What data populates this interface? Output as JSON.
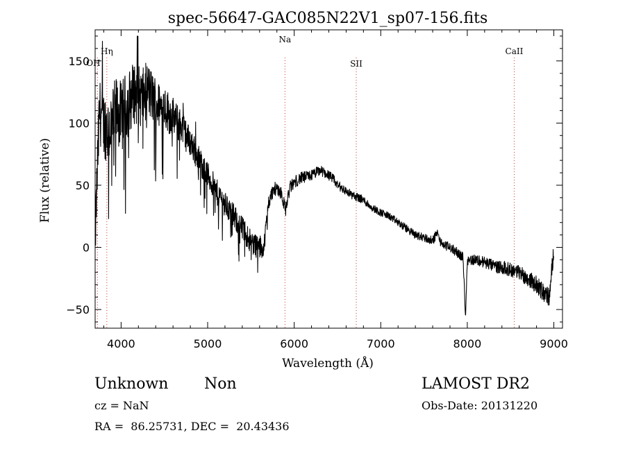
{
  "chart_data": {
    "type": "line",
    "title": "spec-56647-GAC085N22V1_sp07-156.fits",
    "xlabel": "Wavelength (Å)",
    "ylabel": "Flux (relative)",
    "xlim": [
      3700,
      9100
    ],
    "ylim": [
      -65,
      175
    ],
    "xticks": [
      4000,
      5000,
      6000,
      7000,
      8000,
      9000
    ],
    "yticks": [
      -50,
      0,
      50,
      100,
      150
    ],
    "tick_labels_x": [
      "4000",
      "5000",
      "6000",
      "7000",
      "8000",
      "9000"
    ],
    "tick_labels_y": [
      "−50",
      "0",
      "50",
      "100",
      "150"
    ],
    "line_color": "#000000",
    "marker_color": "#cc3333",
    "line_markers": [
      {
        "label": "OH",
        "wavelength": 3727
      },
      {
        "label": "Hη",
        "wavelength": 3835
      },
      {
        "label": "Na",
        "wavelength": 5893
      },
      {
        "label": "SII",
        "wavelength": 6717
      },
      {
        "label": "CaII",
        "wavelength": 8542
      }
    ],
    "anchors": [
      [
        3700,
        5
      ],
      [
        3725,
        60
      ],
      [
        3750,
        110
      ],
      [
        3800,
        100
      ],
      [
        3850,
        95
      ],
      [
        3900,
        100
      ],
      [
        3950,
        110
      ],
      [
        4000,
        105
      ],
      [
        4050,
        112
      ],
      [
        4100,
        118
      ],
      [
        4150,
        125
      ],
      [
        4200,
        122
      ],
      [
        4250,
        120
      ],
      [
        4300,
        128
      ],
      [
        4350,
        122
      ],
      [
        4400,
        118
      ],
      [
        4450,
        112
      ],
      [
        4500,
        115
      ],
      [
        4550,
        108
      ],
      [
        4600,
        105
      ],
      [
        4650,
        100
      ],
      [
        4700,
        98
      ],
      [
        4750,
        90
      ],
      [
        4800,
        85
      ],
      [
        4850,
        78
      ],
      [
        4900,
        70
      ],
      [
        4950,
        65
      ],
      [
        5000,
        58
      ],
      [
        5050,
        52
      ],
      [
        5100,
        45
      ],
      [
        5150,
        40
      ],
      [
        5200,
        35
      ],
      [
        5250,
        30
      ],
      [
        5300,
        25
      ],
      [
        5350,
        20
      ],
      [
        5400,
        15
      ],
      [
        5450,
        10
      ],
      [
        5500,
        5
      ],
      [
        5550,
        2
      ],
      [
        5600,
        0
      ],
      [
        5650,
        0
      ],
      [
        5700,
        35
      ],
      [
        5750,
        45
      ],
      [
        5800,
        48
      ],
      [
        5850,
        44
      ],
      [
        5900,
        30
      ],
      [
        5950,
        48
      ],
      [
        6000,
        52
      ],
      [
        6050,
        55
      ],
      [
        6100,
        56
      ],
      [
        6150,
        57
      ],
      [
        6200,
        58
      ],
      [
        6250,
        60
      ],
      [
        6300,
        62
      ],
      [
        6350,
        60
      ],
      [
        6400,
        58
      ],
      [
        6450,
        55
      ],
      [
        6500,
        50
      ],
      [
        6550,
        48
      ],
      [
        6600,
        45
      ],
      [
        6650,
        43
      ],
      [
        6700,
        41
      ],
      [
        6750,
        40
      ],
      [
        6800,
        38
      ],
      [
        6850,
        35
      ],
      [
        6900,
        32
      ],
      [
        6950,
        30
      ],
      [
        7000,
        28
      ],
      [
        7100,
        25
      ],
      [
        7200,
        20
      ],
      [
        7300,
        15
      ],
      [
        7400,
        10
      ],
      [
        7500,
        8
      ],
      [
        7600,
        5
      ],
      [
        7650,
        12
      ],
      [
        7700,
        3
      ],
      [
        7800,
        0
      ],
      [
        7900,
        -5
      ],
      [
        7950,
        -8
      ],
      [
        7980,
        -55
      ],
      [
        8000,
        -10
      ],
      [
        8100,
        -10
      ],
      [
        8200,
        -12
      ],
      [
        8300,
        -15
      ],
      [
        8400,
        -16
      ],
      [
        8500,
        -18
      ],
      [
        8600,
        -20
      ],
      [
        8700,
        -25
      ],
      [
        8800,
        -30
      ],
      [
        8900,
        -38
      ],
      [
        8950,
        -40
      ],
      [
        9000,
        0
      ]
    ],
    "noise_bands": [
      [
        3700,
        25
      ],
      [
        3900,
        30
      ],
      [
        4200,
        25
      ],
      [
        4500,
        18
      ],
      [
        4800,
        12
      ],
      [
        5200,
        10
      ],
      [
        5600,
        10
      ],
      [
        5700,
        6
      ],
      [
        6400,
        4
      ],
      [
        7000,
        3
      ],
      [
        8000,
        4
      ],
      [
        8600,
        6
      ],
      [
        9000,
        8
      ]
    ]
  },
  "footer": {
    "object_class": "Unknown",
    "object_subclass": "Non",
    "survey": "LAMOST DR2",
    "redshift": "cz = NaN",
    "obs_date": "Obs-Date: 20131220",
    "coordinates": "RA =  86.25731, DEC =  20.43436"
  }
}
